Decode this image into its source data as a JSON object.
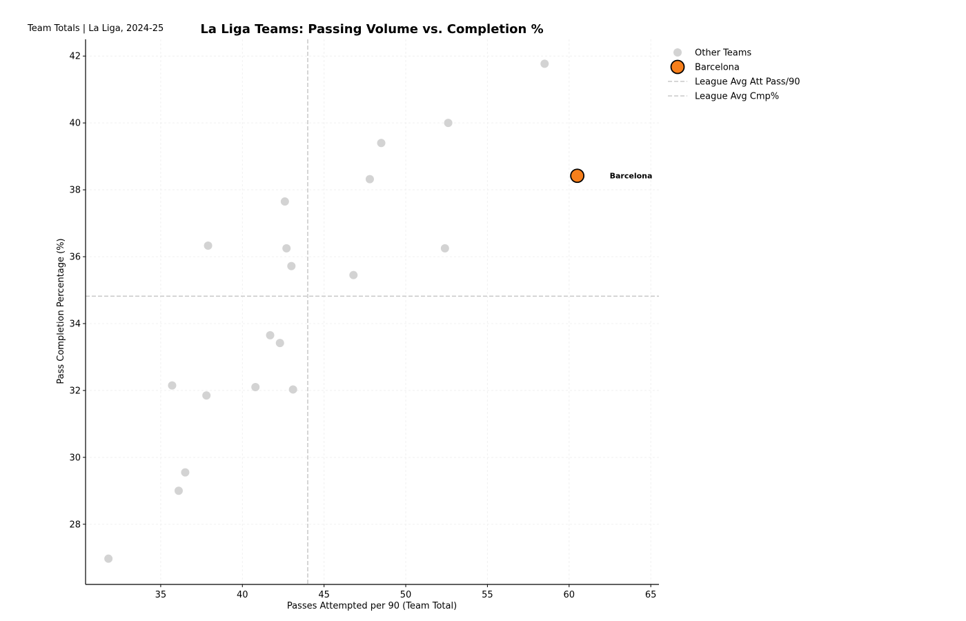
{
  "colors": {
    "other_teams": "#d3d3d3",
    "highlight": "#f77f1b",
    "highlight_edge": "#000000",
    "avg_line": "#c8c8c8",
    "grid": "#f0f0f0"
  },
  "chart_data": {
    "type": "scatter",
    "title": "La Liga Teams: Passing Volume vs. Completion %",
    "subtitle": "Team Totals | La Liga, 2024-25",
    "xlabel": "Passes Attempted per 90 (Team Total)",
    "ylabel": "Pass Completion Percentage (%)",
    "xlim": [
      30.4,
      65.5
    ],
    "ylim": [
      26.2,
      42.5
    ],
    "xticks": [
      35,
      40,
      45,
      50,
      55,
      60,
      65
    ],
    "yticks": [
      28,
      30,
      32,
      34,
      36,
      38,
      40,
      42
    ],
    "grid": true,
    "legend_position": "outside-top-right",
    "reference_lines": {
      "league_avg_att_pass_90": 44.0,
      "league_avg_cmp_pct": 34.82
    },
    "legend": [
      {
        "label": "Other Teams",
        "kind": "point-gray"
      },
      {
        "label": "Barcelona",
        "kind": "point-highlight"
      },
      {
        "label": "League Avg Att Pass/90",
        "kind": "dashed-line"
      },
      {
        "label": "League Avg Cmp%",
        "kind": "dashed-line"
      }
    ],
    "series": [
      {
        "name": "Other Teams",
        "points": [
          {
            "x": 58.5,
            "y": 41.77
          },
          {
            "x": 52.6,
            "y": 40.0
          },
          {
            "x": 48.5,
            "y": 39.4
          },
          {
            "x": 47.8,
            "y": 38.32
          },
          {
            "x": 42.6,
            "y": 37.65
          },
          {
            "x": 37.9,
            "y": 36.33
          },
          {
            "x": 42.7,
            "y": 36.25
          },
          {
            "x": 52.4,
            "y": 36.25
          },
          {
            "x": 43.0,
            "y": 35.72
          },
          {
            "x": 46.8,
            "y": 35.45
          },
          {
            "x": 41.7,
            "y": 33.65
          },
          {
            "x": 42.3,
            "y": 33.42
          },
          {
            "x": 35.7,
            "y": 32.15
          },
          {
            "x": 40.8,
            "y": 32.1
          },
          {
            "x": 43.1,
            "y": 32.03
          },
          {
            "x": 37.8,
            "y": 31.85
          },
          {
            "x": 36.5,
            "y": 29.55
          },
          {
            "x": 36.1,
            "y": 29.0
          },
          {
            "x": 31.8,
            "y": 26.97
          }
        ]
      },
      {
        "name": "Barcelona",
        "points": [
          {
            "x": 60.5,
            "y": 38.42,
            "label": "Barcelona"
          }
        ]
      }
    ]
  }
}
